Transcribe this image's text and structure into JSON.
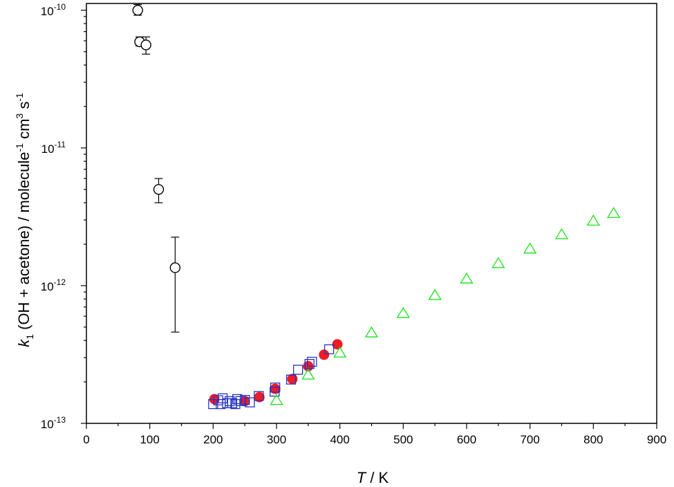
{
  "chart_data": {
    "type": "scatter",
    "xlabel": {
      "italic": "T",
      "rest": " / K"
    },
    "ylabel": {
      "k": "k",
      "sub": "1",
      "text1": " (OH + acetone) / molecule",
      "sup1": "-1",
      "text2": " cm",
      "sup2": "3",
      "text3": " s",
      "sup3": "-1"
    },
    "x_ticks": [
      "0",
      "100",
      "200",
      "300",
      "400",
      "500",
      "600",
      "700",
      "800",
      "900"
    ],
    "y_ticks": [
      {
        "base": "10",
        "exp": "-10",
        "value": 1e-10
      },
      {
        "base": "10",
        "exp": "-11",
        "value": 1e-11
      },
      {
        "base": "10",
        "exp": "-12",
        "value": 1e-12
      },
      {
        "base": "10",
        "exp": "-13",
        "value": 1e-13
      }
    ],
    "xlim": [
      0,
      900
    ],
    "ylim": [
      1e-13,
      1.12e-10
    ],
    "y_scale": "log",
    "grid": false,
    "series": [
      {
        "marker": "open-circle",
        "color": "#000000",
        "points": [
          {
            "x": 81,
            "y": 1e-10,
            "ylo": 9.2e-11,
            "yhi": 1.1e-10
          },
          {
            "x": 84,
            "y": 5.9e-11,
            "ylo": 5.5e-11,
            "yhi": 6.4e-11
          },
          {
            "x": 94,
            "y": 5.6e-11,
            "ylo": 4.8e-11,
            "yhi": 6.4e-11
          },
          {
            "x": 114,
            "y": 5e-12,
            "ylo": 4e-12,
            "yhi": 6e-12
          },
          {
            "x": 140,
            "y": 1.35e-12,
            "ylo": 4.6e-13,
            "yhi": 2.25e-12
          }
        ]
      },
      {
        "marker": "filled-circle",
        "color": "#ee1c24",
        "points": [
          {
            "x": 202,
            "y": 1.5e-13
          },
          {
            "x": 250,
            "y": 1.45e-13
          },
          {
            "x": 273,
            "y": 1.55e-13
          },
          {
            "x": 298,
            "y": 1.78e-13
          },
          {
            "x": 325,
            "y": 2.1e-13
          },
          {
            "x": 350,
            "y": 2.6e-13
          },
          {
            "x": 375,
            "y": 3.15e-13
          },
          {
            "x": 396,
            "y": 3.75e-13
          }
        ]
      },
      {
        "marker": "open-square",
        "color": "#2633c4",
        "points": [
          {
            "x": 200,
            "y": 1.38e-13
          },
          {
            "x": 208,
            "y": 1.47e-13
          },
          {
            "x": 212,
            "y": 1.38e-13
          },
          {
            "x": 215,
            "y": 1.52e-13
          },
          {
            "x": 222,
            "y": 1.4e-13
          },
          {
            "x": 226,
            "y": 1.45e-13
          },
          {
            "x": 230,
            "y": 1.4e-13
          },
          {
            "x": 235,
            "y": 1.38e-13
          },
          {
            "x": 238,
            "y": 1.5e-13
          },
          {
            "x": 243,
            "y": 1.45e-13
          },
          {
            "x": 250,
            "y": 1.48e-13
          },
          {
            "x": 258,
            "y": 1.42e-13
          },
          {
            "x": 272,
            "y": 1.58e-13
          },
          {
            "x": 297,
            "y": 1.7e-13
          },
          {
            "x": 298,
            "y": 1.82e-13
          },
          {
            "x": 323,
            "y": 2.08e-13
          },
          {
            "x": 334,
            "y": 2.45e-13
          },
          {
            "x": 352,
            "y": 2.7e-13
          },
          {
            "x": 356,
            "y": 2.8e-13
          },
          {
            "x": 383,
            "y": 3.45e-13
          }
        ]
      },
      {
        "marker": "open-triangle",
        "color": "#27e327",
        "points": [
          {
            "x": 300,
            "y": 1.47e-13
          },
          {
            "x": 350,
            "y": 2.25e-13
          },
          {
            "x": 400,
            "y": 3.25e-13
          },
          {
            "x": 450,
            "y": 4.55e-13
          },
          {
            "x": 500,
            "y": 6.3e-13
          },
          {
            "x": 550,
            "y": 8.5e-13
          },
          {
            "x": 600,
            "y": 1.12e-12
          },
          {
            "x": 650,
            "y": 1.45e-12
          },
          {
            "x": 700,
            "y": 1.85e-12
          },
          {
            "x": 750,
            "y": 2.35e-12
          },
          {
            "x": 800,
            "y": 2.95e-12
          },
          {
            "x": 832,
            "y": 3.35e-12
          }
        ]
      }
    ]
  }
}
